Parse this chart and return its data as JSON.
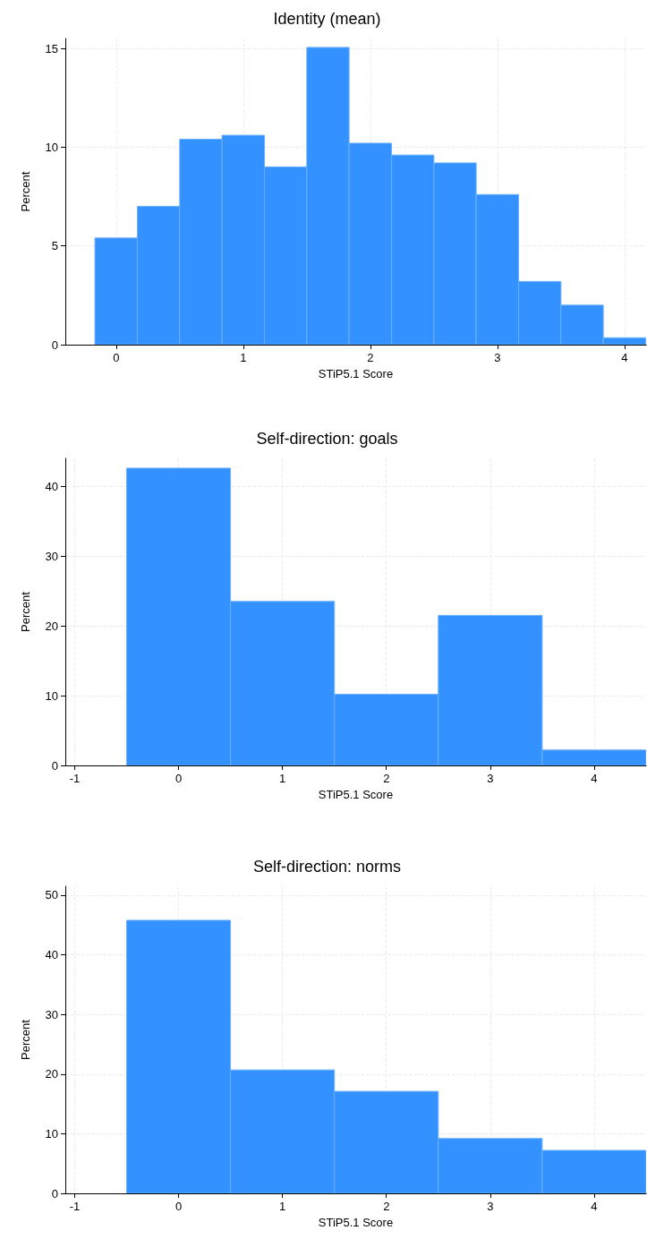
{
  "chart_data": [
    {
      "type": "histogram",
      "title": "Identity (mean)",
      "xlabel": "STiP5.1 Score",
      "ylabel": "Percent",
      "color": "#3392ff",
      "grid": true,
      "bins": [
        -0.167,
        0.167,
        0.5,
        0.833,
        1.167,
        1.5,
        1.833,
        2.167,
        2.5,
        2.833,
        3.167,
        3.5,
        3.833,
        4.167
      ],
      "values": [
        5.4,
        7.0,
        10.4,
        10.6,
        9.0,
        15.05,
        10.2,
        9.6,
        9.2,
        7.6,
        3.2,
        2.0,
        0.35
      ],
      "xlim": [
        -0.4,
        4.17
      ],
      "xticks": [
        0,
        1,
        2,
        3,
        4
      ],
      "ylim": [
        0,
        15.5
      ],
      "yticks": [
        0,
        5,
        10,
        15
      ]
    },
    {
      "type": "histogram",
      "title": "Self-direction: goals",
      "xlabel": "STiP5.1 Score",
      "ylabel": "Percent",
      "color": "#3392ff",
      "grid": true,
      "bins": [
        -0.5,
        0.5,
        1.5,
        2.5,
        3.5,
        4.5
      ],
      "values": [
        42.6,
        23.5,
        10.2,
        21.5,
        2.2
      ],
      "xlim": [
        -1.09,
        4.5
      ],
      "xticks": [
        -1,
        0,
        1,
        2,
        3,
        4
      ],
      "ylim": [
        0,
        44
      ],
      "yticks": [
        0,
        10,
        20,
        30,
        40
      ]
    },
    {
      "type": "histogram",
      "title": "Self-direction: norms",
      "xlabel": "STiP5.1 Score",
      "ylabel": "Percent",
      "color": "#3392ff",
      "grid": true,
      "bins": [
        -0.5,
        0.5,
        1.5,
        2.5,
        3.5,
        4.5
      ],
      "values": [
        45.8,
        20.7,
        17.1,
        9.2,
        7.2
      ],
      "xlim": [
        -1.09,
        4.5
      ],
      "xticks": [
        -1,
        0,
        1,
        2,
        3,
        4
      ],
      "ylim": [
        0,
        51.5
      ],
      "yticks": [
        0,
        10,
        20,
        30,
        40,
        50
      ]
    }
  ]
}
